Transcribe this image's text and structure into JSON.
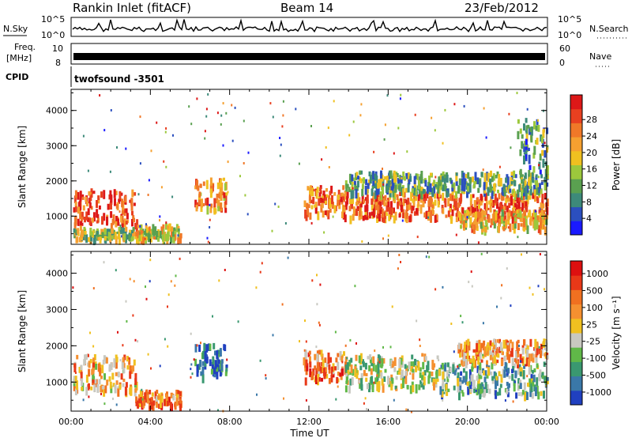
{
  "header": {
    "station": "Rankin Inlet (fitACF)",
    "beam": "Beam 14",
    "date": "23/Feb/2012"
  },
  "top_panels": {
    "nsky_label": "N.Sky",
    "nsky_ticks": [
      "10^5",
      "10^0"
    ],
    "nsearch_label": "N.Search",
    "nsearch_ticks": [
      "10^5",
      "10^0"
    ],
    "freq_label_1": "Freq.",
    "freq_label_2": "[MHz]",
    "freq_ticks": [
      "10",
      "8"
    ],
    "nave_label": "Nave",
    "nave_ticks": [
      "60",
      "0"
    ],
    "cpid_label": "CPID",
    "cpid_value": "twofsound -3501"
  },
  "chart_data": [
    {
      "type": "heatmap",
      "name": "power-panel",
      "ylabel": "Slant Range [km]",
      "ylim": [
        200,
        4600
      ],
      "yticks": [
        1000,
        2000,
        3000,
        4000
      ],
      "xlim": [
        0,
        24
      ],
      "colorbar": {
        "label": "Power [dB]",
        "ticks": [
          "4",
          "8",
          "12",
          "16",
          "20",
          "24",
          "28"
        ],
        "colors": [
          "#1a1aff",
          "#2b4fbf",
          "#3d8a7a",
          "#5aa050",
          "#9cc83c",
          "#f0c020",
          "#f5a030",
          "#f07828",
          "#e84020",
          "#dd1818"
        ]
      },
      "clusters": [
        {
          "t0": 0.1,
          "t1": 3.3,
          "r0": 800,
          "r1": 1800,
          "level": 0.85
        },
        {
          "t0": 0.1,
          "t1": 3.3,
          "r0": 400,
          "r1": 700,
          "level": 0.45
        },
        {
          "t0": 3.2,
          "t1": 5.5,
          "r0": 400,
          "r1": 800,
          "level": 0.55
        },
        {
          "t0": 6.2,
          "t1": 7.8,
          "r0": 1200,
          "r1": 2100,
          "level": 0.7
        },
        {
          "t0": 11.7,
          "t1": 13.8,
          "r0": 1100,
          "r1": 1900,
          "level": 0.75
        },
        {
          "t0": 13.6,
          "t1": 24.0,
          "r0": 1000,
          "r1": 1700,
          "level": 0.8
        },
        {
          "t0": 13.8,
          "t1": 24.0,
          "r0": 1700,
          "r1": 2300,
          "level": 0.35
        },
        {
          "t0": 19.5,
          "t1": 24.0,
          "r0": 700,
          "r1": 1200,
          "level": 0.6
        },
        {
          "t0": 22.5,
          "t1": 24.0,
          "r0": 2300,
          "r1": 3800,
          "level": 0.3
        }
      ]
    },
    {
      "type": "heatmap",
      "name": "velocity-panel",
      "ylabel": "Slant Range [km]",
      "xlabel": "Time UT",
      "ylim": [
        200,
        4600
      ],
      "yticks": [
        1000,
        2000,
        3000,
        4000
      ],
      "xlim": [
        0,
        24
      ],
      "xticks": [
        "00:00",
        "04:00",
        "08:00",
        "12:00",
        "16:00",
        "20:00",
        "00:00"
      ],
      "colorbar": {
        "label": "Velocity [m s⁻¹]",
        "ticks": [
          "1000",
          "500",
          "100",
          "25",
          "-25",
          "-100",
          "-500",
          "-1000"
        ],
        "colors": [
          "#2040c0",
          "#3a78a8",
          "#3a9870",
          "#60b848",
          "#c8c8c0",
          "#f0c020",
          "#f59030",
          "#f07020",
          "#e83818",
          "#dd1010"
        ]
      },
      "clusters": [
        {
          "t0": 0.1,
          "t1": 3.3,
          "r0": 800,
          "r1": 1800,
          "level": 0.6
        },
        {
          "t0": 3.2,
          "t1": 5.5,
          "r0": 400,
          "r1": 800,
          "level": 0.7
        },
        {
          "t0": 6.2,
          "t1": 7.8,
          "r0": 1200,
          "r1": 2100,
          "level": 0.15
        },
        {
          "t0": 11.7,
          "t1": 13.8,
          "r0": 1100,
          "r1": 1900,
          "level": 0.7
        },
        {
          "t0": 13.8,
          "t1": 18.5,
          "r0": 900,
          "r1": 1800,
          "level": 0.45
        },
        {
          "t0": 18.5,
          "t1": 24.0,
          "r0": 700,
          "r1": 1600,
          "level": 0.3
        },
        {
          "t0": 19.5,
          "t1": 24.0,
          "r0": 1600,
          "r1": 2200,
          "level": 0.65
        }
      ]
    }
  ]
}
